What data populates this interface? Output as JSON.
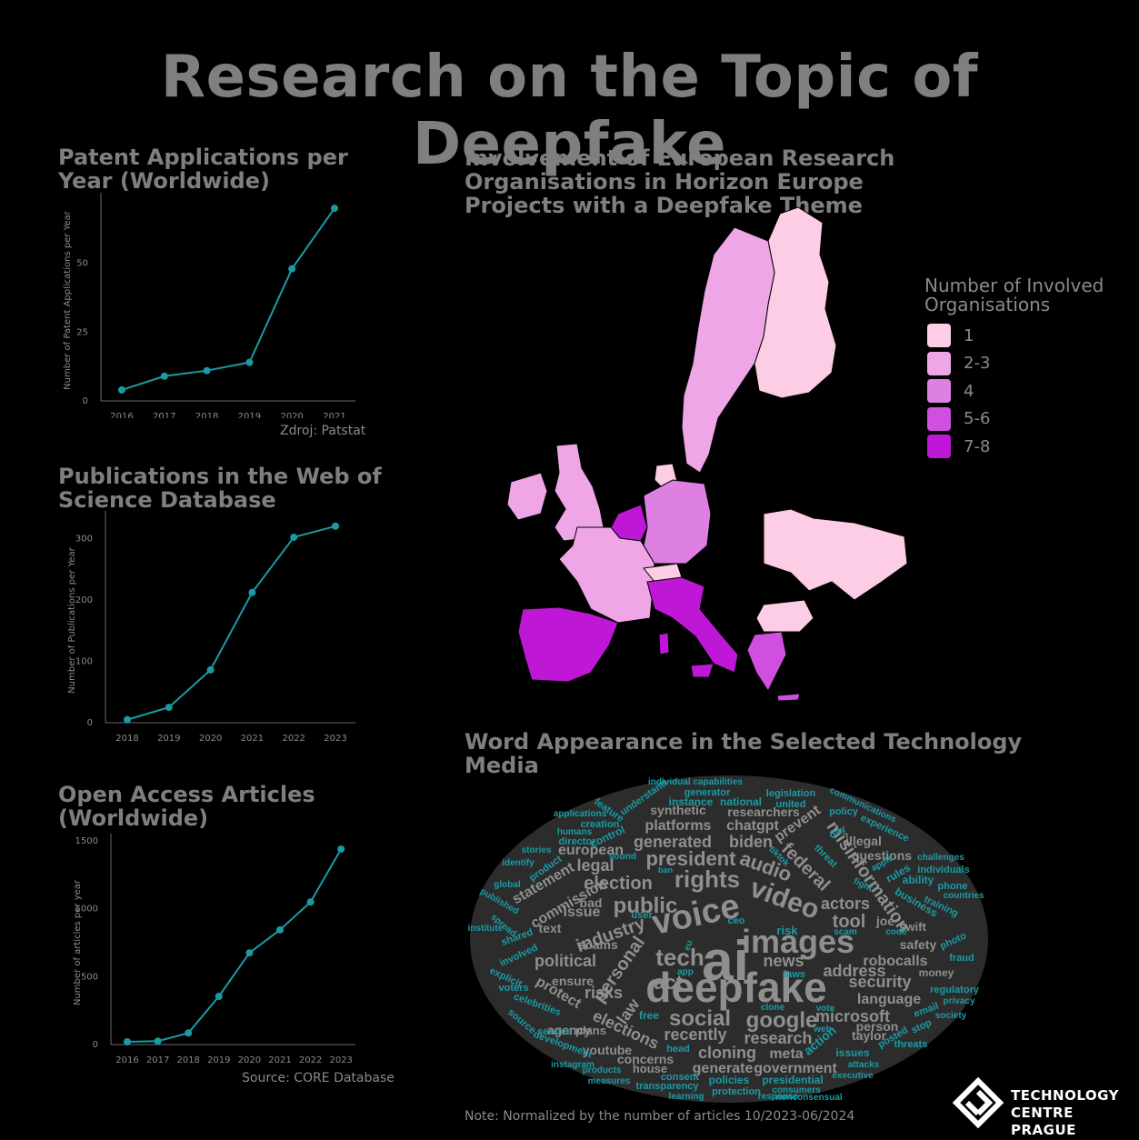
{
  "header": {
    "title": "Research on the Topic of Deepfake"
  },
  "colors": {
    "background": "#000000",
    "line": "#1a9ba3",
    "text": "#8a8a8a"
  },
  "chart_data": [
    {
      "type": "line",
      "title": "Patent Applications per Year (Worldwide)",
      "ylabel": "Number of Patent Applications per Year",
      "xlabel": "",
      "x": [
        "2016",
        "2017",
        "2018",
        "2019",
        "2020",
        "2021"
      ],
      "values": [
        4,
        9,
        11,
        14,
        48,
        70
      ],
      "ylim": [
        0,
        73
      ],
      "yticks": [
        0,
        25,
        50
      ],
      "source": "Zdroj: Patstat"
    },
    {
      "type": "line",
      "title": "Publications in the Web of Science Database",
      "ylabel": "Number of Publications per Year",
      "xlabel": "",
      "x": [
        "2018",
        "2019",
        "2020",
        "2021",
        "2022",
        "2023"
      ],
      "values": [
        5,
        25,
        86,
        212,
        302,
        320
      ],
      "ylim": [
        0,
        333
      ],
      "yticks": [
        0,
        100,
        200,
        300
      ]
    },
    {
      "type": "line",
      "title": "Open Access Articles (Worldwide)",
      "ylabel": "Number of articles per year",
      "xlabel": "",
      "x": [
        "2016",
        "2017",
        "2018",
        "2019",
        "2020",
        "2021",
        "2022",
        "2023"
      ],
      "values": [
        20,
        25,
        85,
        355,
        675,
        845,
        1050,
        1440
      ],
      "ylim": [
        0,
        1500
      ],
      "yticks": [
        0,
        500,
        1000,
        1500
      ],
      "source": "Source: CORE Database"
    }
  ],
  "map": {
    "title": "Involvement of European Research Organisations in Horizon Europe Projects with a Deepfake Theme",
    "legend_title": "Number of Involved Organisations",
    "legend": [
      {
        "label": "1",
        "color": "#fccde5"
      },
      {
        "label": "2-3",
        "color": "#eea6e6"
      },
      {
        "label": "4",
        "color": "#de80e2"
      },
      {
        "label": "5-6",
        "color": "#cf4fdf"
      },
      {
        "label": "7-8",
        "color": "#bf17d6"
      }
    ]
  },
  "wordcloud": {
    "title": "Word Appearance in the Selected Technology Media",
    "note": "Note: Normalized by the number of articles 10/2023-06/2024"
  },
  "logo": {
    "line1": "TECHNOLOGY",
    "line2": "CENTRE PRAGUE"
  }
}
